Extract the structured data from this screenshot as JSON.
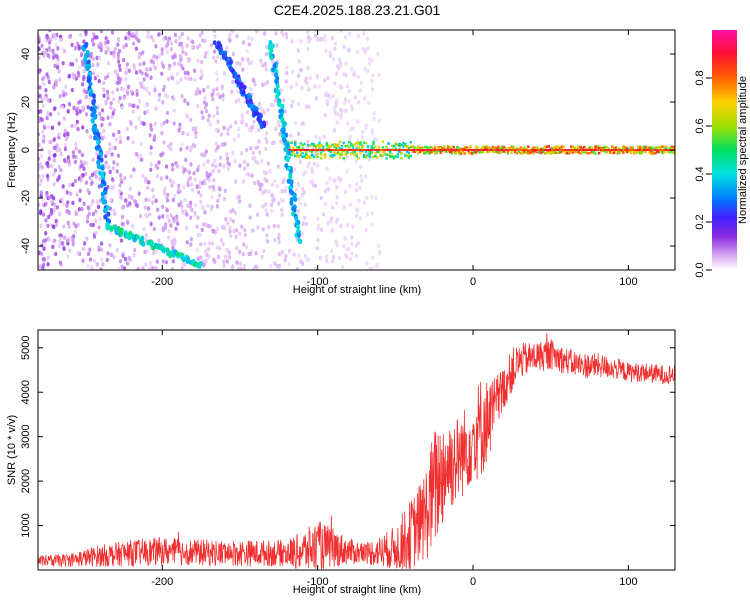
{
  "figure": {
    "title": "C2E4.2025.188.23.21.G01"
  },
  "chart_data": [
    {
      "type": "heatmap",
      "xlabel": "Height of straight line (km)",
      "ylabel": "Frequency (Hz)",
      "xlim": [
        -280,
        130
      ],
      "ylim": [
        -50,
        50
      ],
      "x_ticks": [
        -200,
        -100,
        0,
        100
      ],
      "y_ticks": [
        -40,
        -20,
        0,
        20,
        40
      ],
      "colorbar": {
        "label": "Normalized spectral amplitude",
        "range": [
          0,
          1
        ],
        "ticks": [
          "0.0",
          "0.2",
          "0.4",
          "0.6",
          "0.8"
        ],
        "colors": [
          "#ffffff",
          "#d8a8f0",
          "#8a2be2",
          "#4020ff",
          "#0080ff",
          "#00e0e0",
          "#00e060",
          "#a0e000",
          "#ffd000",
          "#ff6000",
          "#ff1030",
          "#ff10a0"
        ]
      },
      "features": [
        {
          "name": "carrier line",
          "freq_hz": 0,
          "x_from": -120,
          "x_to": 130,
          "amplitude": 0.8
        },
        {
          "name": "descending streak A",
          "from": [
            -250,
            45
          ],
          "to": [
            -235,
            -30
          ],
          "amplitude": 0.3
        },
        {
          "name": "descending streak B",
          "from": [
            -130,
            45
          ],
          "to": [
            -112,
            -38
          ],
          "amplitude": 0.35
        },
        {
          "name": "descending streak C",
          "from": [
            -165,
            45
          ],
          "to": [
            -135,
            10
          ],
          "amplitude": 0.25
        },
        {
          "name": "low branch",
          "from": [
            -235,
            -32
          ],
          "to": [
            -175,
            -48
          ],
          "amplitude": 0.4
        }
      ]
    },
    {
      "type": "line",
      "xlabel": "Height of straight line (km)",
      "ylabel": "SNR (10 * v/v)",
      "xlim": [
        -280,
        130
      ],
      "ylim": [
        0,
        5400
      ],
      "x_ticks": [
        -200,
        -100,
        0,
        100
      ],
      "y_ticks": [
        1000,
        2000,
        3000,
        4000,
        5000
      ],
      "color": "#f03030",
      "series": [
        {
          "x": [
            -280,
            -260,
            -240,
            -220,
            -200,
            -180,
            -160,
            -140,
            -120,
            -110,
            -100,
            -90,
            -80,
            -70,
            -60,
            -50,
            -45,
            -40,
            -35,
            -30,
            -25,
            -20,
            -15,
            -10,
            -5,
            0,
            5,
            10,
            15,
            20,
            25,
            30,
            40,
            50,
            60,
            70,
            80,
            90,
            100,
            110,
            120,
            130
          ],
          "values": [
            200,
            220,
            320,
            380,
            420,
            400,
            380,
            380,
            380,
            420,
            520,
            500,
            420,
            380,
            420,
            500,
            620,
            800,
            1000,
            1300,
            1800,
            2200,
            2400,
            2500,
            2700,
            3000,
            3200,
            3400,
            3700,
            4100,
            4500,
            4700,
            4800,
            4850,
            4700,
            4600,
            4600,
            4550,
            4450,
            4450,
            4400,
            4400
          ],
          "spread": [
            120,
            150,
            250,
            300,
            320,
            300,
            300,
            300,
            300,
            450,
            600,
            450,
            300,
            250,
            350,
            500,
            700,
            800,
            900,
            1100,
            1400,
            1300,
            1100,
            1000,
            1000,
            1000,
            1200,
            900,
            700,
            500,
            500,
            400,
            350,
            350,
            300,
            300,
            280,
            250,
            220,
            220,
            220,
            220
          ]
        }
      ]
    }
  ]
}
